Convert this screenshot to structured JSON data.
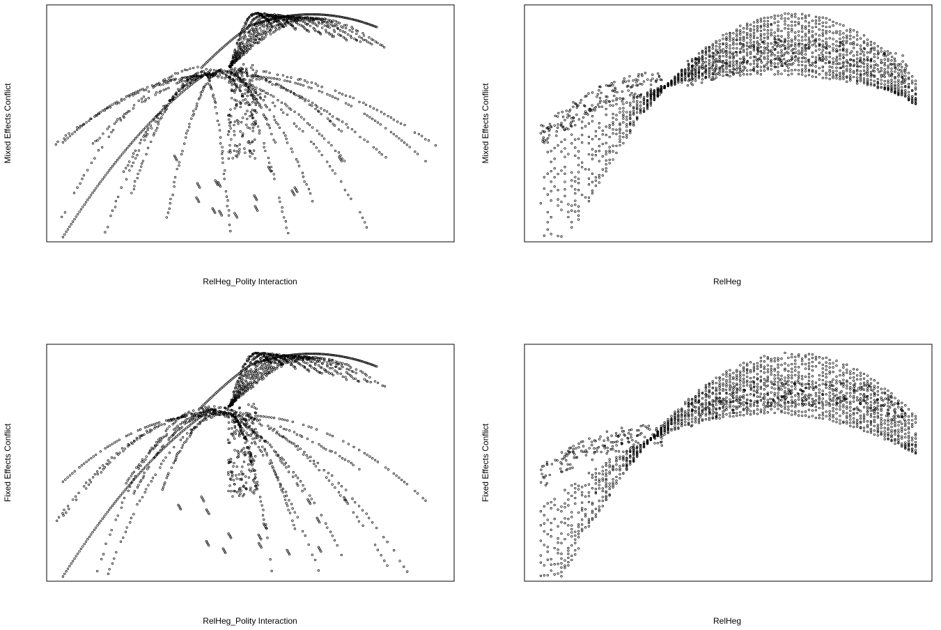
{
  "panels": [
    {
      "xlabel": "RelHeg_Polity Interaction",
      "ylabel": "Mixed Effects Conflict"
    },
    {
      "xlabel": "RelHeg",
      "ylabel": "Mixed Effects Conflict"
    },
    {
      "xlabel": "RelHeg_Polity Interaction",
      "ylabel": "Fixed Effects Conflict"
    },
    {
      "xlabel": "RelHeg",
      "ylabel": "Fixed Effects Conflict"
    }
  ],
  "chart_data": [
    {
      "type": "scatter",
      "xlabel": "RelHeg_Polity Interaction",
      "ylabel": "Mixed Effects Conflict",
      "axes_visible": false,
      "grid": false,
      "pattern": "interaction-fan",
      "xlim": [
        0,
        1
      ],
      "ylim": [
        0,
        1
      ],
      "peak": [
        0.65,
        0.96
      ],
      "series": [
        {
          "family": "up",
          "curves": 10
        },
        {
          "family": "down",
          "curves": 16
        }
      ]
    },
    {
      "type": "scatter",
      "xlabel": "RelHeg",
      "ylabel": "Mixed Effects Conflict",
      "axes_visible": false,
      "grid": false,
      "pattern": "quadratic-family",
      "xlim": [
        0,
        1
      ],
      "ylim": [
        0,
        1
      ],
      "crossing": [
        0.35,
        0.66
      ],
      "curves": 18
    },
    {
      "type": "scatter",
      "xlabel": "RelHeg_Polity Interaction",
      "ylabel": "Fixed Effects Conflict",
      "axes_visible": false,
      "grid": false,
      "pattern": "interaction-fan",
      "xlim": [
        0,
        1
      ],
      "ylim": [
        0,
        1
      ],
      "peak": [
        0.65,
        0.96
      ],
      "series": [
        {
          "family": "up",
          "curves": 10
        },
        {
          "family": "down",
          "curves": 16
        }
      ]
    },
    {
      "type": "scatter",
      "xlabel": "RelHeg",
      "ylabel": "Fixed Effects Conflict",
      "axes_visible": false,
      "grid": false,
      "pattern": "quadratic-family",
      "xlim": [
        0,
        1
      ],
      "ylim": [
        0,
        1
      ],
      "crossing": [
        0.31,
        0.6
      ],
      "curves": 18
    }
  ]
}
